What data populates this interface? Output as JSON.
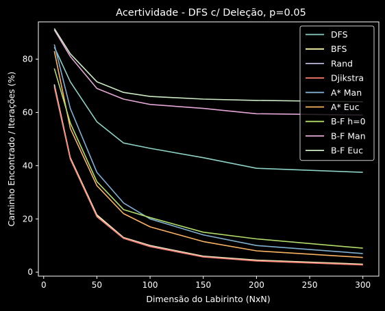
{
  "chart_data": {
    "type": "line",
    "title": "Acertividade - DFS c/ Deleção, p=0.05",
    "xlabel": "Dimensão do Labirinto (NxN)",
    "ylabel": "Caminho Encontrado / Iterações (%)",
    "xlim": [
      -5,
      315
    ],
    "ylim": [
      -1.5,
      94
    ],
    "xticks": [
      0,
      50,
      100,
      150,
      200,
      250,
      300
    ],
    "yticks": [
      0,
      20,
      40,
      60,
      80
    ],
    "grid": false,
    "legend_position": "top-right",
    "x": [
      10,
      25,
      50,
      75,
      100,
      150,
      200,
      300
    ],
    "series": [
      {
        "name": "DFS",
        "color": "#8dd3c7",
        "values": [
          84.5,
          71.5,
          56.5,
          48.5,
          46.5,
          43.0,
          39.0,
          37.5
        ]
      },
      {
        "name": "BFS",
        "color": "#ffffb3",
        "values": [
          70.5,
          43.0,
          21.5,
          13.0,
          10.0,
          6.0,
          4.5,
          3.0
        ]
      },
      {
        "name": "Rand",
        "color": "#bebada",
        "values": [
          70.0,
          42.5,
          21.0,
          12.8,
          9.8,
          5.8,
          4.3,
          2.8
        ]
      },
      {
        "name": "Djikstra",
        "color": "#fb8072",
        "values": [
          69.5,
          42.5,
          20.8,
          12.7,
          9.6,
          5.7,
          4.2,
          2.7
        ]
      },
      {
        "name": "A* Man",
        "color": "#80b1d3",
        "values": [
          85.5,
          61.5,
          37.5,
          26.0,
          20.0,
          14.0,
          10.0,
          7.0
        ]
      },
      {
        "name": "A* Euc",
        "color": "#fdb462",
        "values": [
          83.0,
          54.0,
          32.5,
          22.0,
          17.0,
          11.5,
          8.0,
          5.5
        ]
      },
      {
        "name": "B-F h=0",
        "color": "#b3de69",
        "values": [
          76.5,
          56.0,
          34.0,
          23.5,
          20.5,
          15.0,
          12.5,
          9.0
        ]
      },
      {
        "name": "B-F Man",
        "color": "#e5a8d8",
        "values": [
          91.0,
          81.0,
          69.0,
          65.0,
          63.0,
          61.5,
          59.5,
          59.0
        ]
      },
      {
        "name": "B-F Euc",
        "color": "#ccebc5",
        "values": [
          91.5,
          82.0,
          71.5,
          67.5,
          66.0,
          65.0,
          64.5,
          64.0
        ]
      }
    ]
  }
}
